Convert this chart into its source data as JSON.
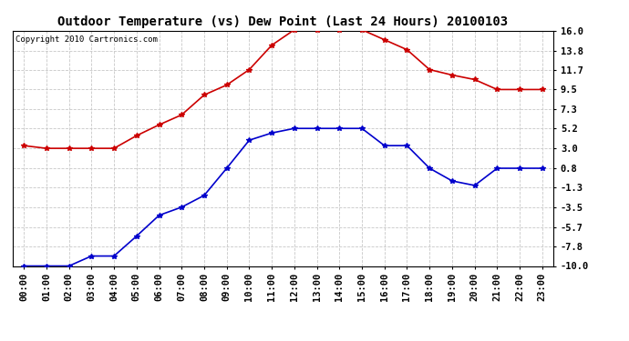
{
  "title": "Outdoor Temperature (vs) Dew Point (Last 24 Hours) 20100103",
  "copyright": "Copyright 2010 Cartronics.com",
  "hours": [
    "00:00",
    "01:00",
    "02:00",
    "03:00",
    "04:00",
    "05:00",
    "06:00",
    "07:00",
    "08:00",
    "09:00",
    "10:00",
    "11:00",
    "12:00",
    "13:00",
    "14:00",
    "15:00",
    "16:00",
    "17:00",
    "18:00",
    "19:00",
    "20:00",
    "21:00",
    "22:00",
    "23:00"
  ],
  "temp": [
    3.3,
    3.0,
    3.0,
    3.0,
    3.0,
    4.4,
    5.6,
    6.7,
    8.9,
    10.0,
    11.7,
    14.4,
    16.1,
    16.1,
    16.1,
    16.1,
    15.0,
    13.9,
    11.7,
    11.1,
    10.6,
    9.5,
    9.5,
    9.5
  ],
  "dew": [
    -10.0,
    -10.0,
    -10.0,
    -8.9,
    -8.9,
    -6.7,
    -4.4,
    -3.5,
    -2.2,
    0.8,
    3.9,
    4.7,
    5.2,
    5.2,
    5.2,
    5.2,
    3.3,
    3.3,
    0.8,
    -0.6,
    -1.1,
    0.8,
    0.8,
    0.8
  ],
  "temp_color": "#cc0000",
  "dew_color": "#0000cc",
  "bg_color": "#ffffff",
  "grid_color": "#c8c8c8",
  "ylim": [
    -10.0,
    16.0
  ],
  "yticks": [
    16.0,
    13.8,
    11.7,
    9.5,
    7.3,
    5.2,
    3.0,
    0.8,
    -1.3,
    -3.5,
    -5.7,
    -7.8,
    -10.0
  ],
  "title_fontsize": 10,
  "tick_fontsize": 7.5,
  "copyright_fontsize": 6.5
}
